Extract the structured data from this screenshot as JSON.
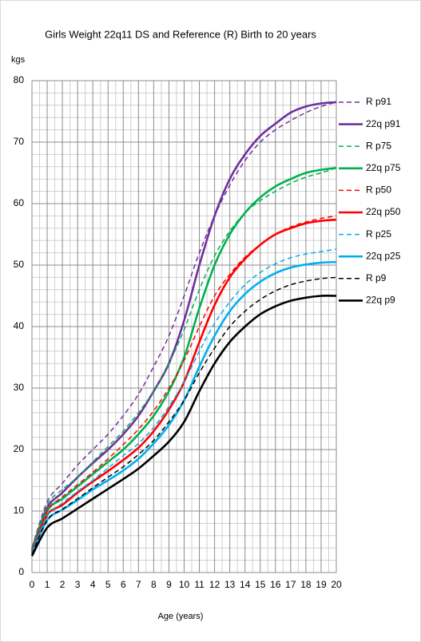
{
  "chart_data": {
    "type": "line",
    "title": "Girls Weight 22q11 DS and Reference (R) Birth to 20 years",
    "y_label": "kgs",
    "x_label": "Age (years)",
    "x": [
      0,
      1,
      2,
      3,
      4,
      5,
      6,
      7,
      8,
      9,
      10,
      11,
      12,
      13,
      14,
      15,
      16,
      17,
      18,
      19,
      20
    ],
    "xlim": [
      0,
      20
    ],
    "xticks": [
      0,
      1,
      2,
      3,
      4,
      5,
      6,
      7,
      8,
      9,
      10,
      11,
      12,
      13,
      14,
      15,
      16,
      17,
      18,
      19,
      20
    ],
    "xticks_minor": [
      0.5,
      1.5,
      2.5,
      3.5,
      4.5,
      5.5,
      6.5,
      7.5,
      8.5,
      9.5,
      10.5,
      11.5,
      12.5,
      13.5,
      14.5,
      15.5,
      16.5,
      17.5,
      18.5,
      19.5
    ],
    "ylim": [
      0,
      80
    ],
    "yticks": [
      0,
      10,
      20,
      30,
      40,
      50,
      60,
      70,
      80
    ],
    "yticks_minor": [
      2,
      4,
      6,
      8,
      12,
      14,
      16,
      18,
      22,
      24,
      26,
      28,
      32,
      34,
      36,
      38,
      42,
      44,
      46,
      48,
      52,
      54,
      56,
      58,
      62,
      64,
      66,
      68,
      72,
      74,
      76,
      78
    ],
    "grid": true,
    "series": [
      {
        "name": "R p91",
        "color": "#7030a0",
        "style": "dashed",
        "values": [
          4,
          11.5,
          14.5,
          17.5,
          20,
          22.5,
          25.5,
          29,
          33.5,
          38.5,
          45,
          52,
          58,
          63,
          67,
          70,
          72,
          73.5,
          74.8,
          75.8,
          76.5
        ]
      },
      {
        "name": "22q p91",
        "color": "#7030a0",
        "style": "solid",
        "values": [
          3.8,
          10.5,
          13,
          15.5,
          17.8,
          20,
          22.5,
          25.5,
          29.5,
          34,
          41,
          50,
          58,
          64,
          68,
          71,
          73,
          74.8,
          75.8,
          76.3,
          76.5
        ]
      },
      {
        "name": "R p75",
        "color": "#00b050",
        "style": "dashed",
        "values": [
          3.7,
          11,
          13.5,
          15.5,
          18,
          20.5,
          23,
          26,
          29.5,
          34,
          39.5,
          46,
          51.5,
          55.5,
          58.5,
          60.5,
          62,
          63.3,
          64.3,
          65,
          65.8
        ]
      },
      {
        "name": "22q p75",
        "color": "#00b050",
        "style": "solid",
        "values": [
          3.5,
          10,
          12,
          14,
          16,
          18,
          20,
          22.5,
          25.5,
          29.5,
          35,
          43,
          50,
          55,
          58.5,
          61,
          62.8,
          64,
          65,
          65.5,
          65.8
        ]
      },
      {
        "name": "R p50",
        "color": "#ff0000",
        "style": "dashed",
        "values": [
          3.4,
          10,
          12.3,
          14.3,
          16.3,
          18.5,
          20.8,
          23.3,
          26.3,
          30,
          34.5,
          40,
          45,
          48.5,
          51.3,
          53.3,
          55,
          56.2,
          57,
          57.6,
          58
        ]
      },
      {
        "name": "22q p50",
        "color": "#ff0000",
        "style": "solid",
        "values": [
          3.2,
          9.3,
          11,
          13,
          14.8,
          16.5,
          18.3,
          20.3,
          23,
          26.5,
          31,
          37.5,
          43.5,
          48,
          51,
          53.3,
          55,
          56,
          56.8,
          57.2,
          57.4
        ]
      },
      {
        "name": "R p25",
        "color": "#00b0f0",
        "style": "dashed",
        "values": [
          3.2,
          9.2,
          11.3,
          13.2,
          15,
          17,
          19,
          21,
          23.6,
          27,
          31,
          36,
          40.5,
          44,
          46.8,
          48.8,
          50.2,
          51.2,
          51.8,
          52.2,
          52.6
        ]
      },
      {
        "name": "22q p25",
        "color": "#00b0f0",
        "style": "solid",
        "values": [
          3,
          8.5,
          10.2,
          11.8,
          13.5,
          15,
          16.6,
          18.5,
          21,
          24,
          28,
          33.5,
          38.5,
          42.5,
          45.3,
          47.3,
          48.7,
          49.6,
          50.1,
          50.4,
          50.5
        ]
      },
      {
        "name": "R p9",
        "color": "#000000",
        "style": "dashed",
        "values": [
          3,
          8.5,
          10.3,
          12,
          13.8,
          15.5,
          17.2,
          19.2,
          21.5,
          24.5,
          28,
          32.5,
          36.5,
          40,
          42.5,
          44.4,
          45.8,
          46.8,
          47.4,
          47.8,
          48
        ]
      },
      {
        "name": "22q p9",
        "color": "#000000",
        "style": "solid",
        "values": [
          2.7,
          7.3,
          8.8,
          10.4,
          12,
          13.6,
          15.2,
          16.9,
          19,
          21.3,
          24.5,
          29.5,
          34,
          37.5,
          40,
          42,
          43.3,
          44.2,
          44.7,
          45,
          45
        ]
      }
    ]
  }
}
